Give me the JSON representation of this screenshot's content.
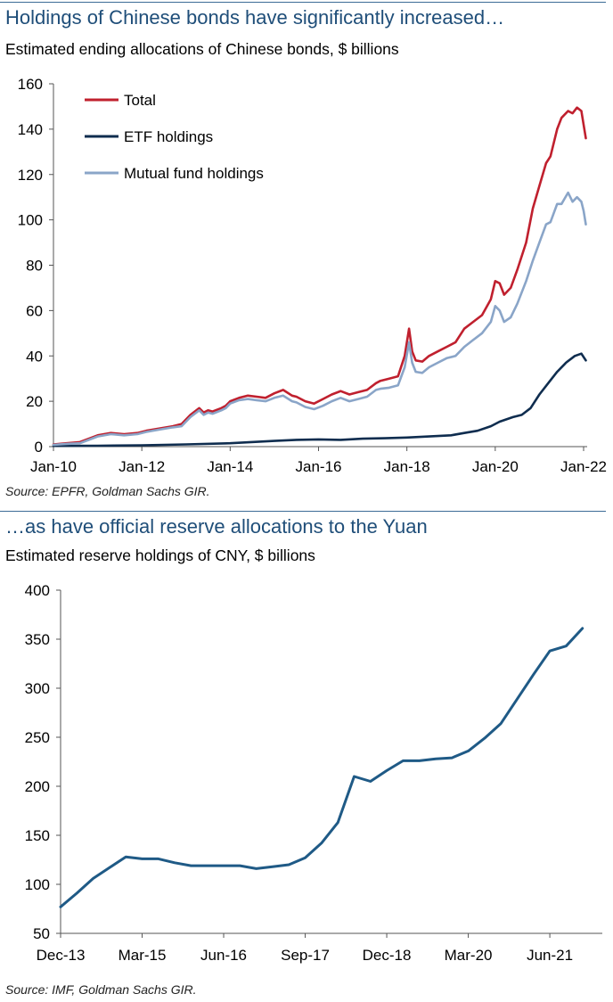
{
  "chart_data": [
    {
      "type": "line",
      "title": "Holdings of Chinese bonds have significantly increased…",
      "subtitle": "Estimated ending allocations of Chinese bonds, $ billions",
      "source": "Source: EPFR, Goldman Sachs GIR.",
      "xlim": [
        2010.0,
        2022.0
      ],
      "ylim": [
        0,
        160
      ],
      "y_ticks": [
        0,
        20,
        40,
        60,
        80,
        100,
        120,
        140,
        160
      ],
      "x_tick_labels": [
        "Jan-10",
        "Jan-12",
        "Jan-14",
        "Jan-16",
        "Jan-18",
        "Jan-20",
        "Jan-22"
      ],
      "x_tick_values": [
        2010,
        2012,
        2014,
        2016,
        2018,
        2020,
        2022
      ],
      "legend_position": "top-left",
      "grid": false,
      "series": [
        {
          "name": "Total",
          "color": "#c0202e",
          "x": [
            2010.0,
            2010.3,
            2010.6,
            2010.8,
            2011.0,
            2011.3,
            2011.6,
            2011.9,
            2012.1,
            2012.4,
            2012.7,
            2012.9,
            2013.1,
            2013.3,
            2013.4,
            2013.5,
            2013.6,
            2013.8,
            2013.9,
            2014.0,
            2014.2,
            2014.4,
            2014.6,
            2014.8,
            2015.0,
            2015.2,
            2015.4,
            2015.5,
            2015.7,
            2015.9,
            2016.1,
            2016.3,
            2016.5,
            2016.7,
            2016.9,
            2017.1,
            2017.3,
            2017.4,
            2017.6,
            2017.8,
            2017.95,
            2018.05,
            2018.12,
            2018.2,
            2018.35,
            2018.5,
            2018.7,
            2018.9,
            2019.1,
            2019.3,
            2019.5,
            2019.7,
            2019.9,
            2020.0,
            2020.1,
            2020.2,
            2020.35,
            2020.5,
            2020.7,
            2020.85,
            2021.0,
            2021.15,
            2021.25,
            2021.4,
            2021.5,
            2021.65,
            2021.75,
            2021.85,
            2021.95,
            2022.0,
            2022.05
          ],
          "values": [
            1,
            1.5,
            2,
            3.5,
            5,
            6,
            5.5,
            6,
            7,
            8,
            9,
            10,
            14,
            17,
            15,
            16,
            15.5,
            17,
            18,
            20,
            21.5,
            22.5,
            22,
            21.5,
            23.5,
            25,
            22.5,
            22,
            20,
            19,
            21,
            23,
            24.5,
            23,
            24,
            25,
            28,
            29,
            30,
            31,
            40,
            52,
            42,
            38,
            37.5,
            40,
            42,
            44,
            46,
            52,
            55,
            58,
            65,
            73,
            72,
            67,
            70,
            78,
            90,
            105,
            115,
            125,
            128,
            140,
            145,
            148,
            147,
            149.5,
            148,
            142,
            136
          ]
        },
        {
          "name": "ETF holdings",
          "color": "#0f2d4f",
          "x": [
            2010.0,
            2011.0,
            2012.0,
            2013.0,
            2014.0,
            2015.0,
            2015.5,
            2016.0,
            2016.5,
            2017.0,
            2017.5,
            2018.0,
            2018.5,
            2019.0,
            2019.3,
            2019.6,
            2019.9,
            2020.1,
            2020.4,
            2020.6,
            2020.8,
            2021.0,
            2021.2,
            2021.4,
            2021.6,
            2021.8,
            2021.95,
            2022.05
          ],
          "values": [
            0.3,
            0.4,
            0.6,
            1,
            1.5,
            2.5,
            3,
            3.2,
            3,
            3.5,
            3.7,
            4,
            4.5,
            5,
            6,
            7,
            9,
            11,
            13,
            14,
            17,
            23,
            28,
            33,
            37,
            40,
            41,
            38
          ]
        },
        {
          "name": "Mutual fund holdings",
          "color": "#8aa5c8",
          "x": [
            2010.0,
            2010.3,
            2010.6,
            2010.8,
            2011.0,
            2011.3,
            2011.6,
            2011.9,
            2012.1,
            2012.4,
            2012.7,
            2012.9,
            2013.1,
            2013.3,
            2013.4,
            2013.5,
            2013.6,
            2013.8,
            2013.9,
            2014.0,
            2014.2,
            2014.4,
            2014.6,
            2014.8,
            2015.0,
            2015.2,
            2015.4,
            2015.5,
            2015.7,
            2015.9,
            2016.1,
            2016.3,
            2016.5,
            2016.7,
            2016.9,
            2017.1,
            2017.3,
            2017.4,
            2017.6,
            2017.8,
            2017.95,
            2018.05,
            2018.12,
            2018.2,
            2018.35,
            2018.5,
            2018.7,
            2018.9,
            2019.1,
            2019.3,
            2019.5,
            2019.7,
            2019.9,
            2020.0,
            2020.1,
            2020.2,
            2020.35,
            2020.5,
            2020.7,
            2020.85,
            2021.0,
            2021.15,
            2021.25,
            2021.4,
            2021.5,
            2021.65,
            2021.75,
            2021.85,
            2021.95,
            2022.0,
            2022.05
          ],
          "values": [
            0.8,
            1.2,
            1.5,
            3,
            4.5,
            5.5,
            5,
            5.5,
            6.5,
            7.5,
            8.5,
            9,
            13,
            16,
            14,
            15,
            14.5,
            16,
            17,
            19,
            20.5,
            21,
            20.5,
            20,
            21.5,
            22.5,
            20,
            19.5,
            17.5,
            16.5,
            18,
            20,
            21.5,
            20,
            21,
            22,
            25,
            25.5,
            26,
            27,
            35,
            46,
            37,
            33,
            32.5,
            35,
            37,
            39,
            40,
            44,
            47,
            50,
            55,
            62,
            60,
            55,
            57,
            63,
            73,
            82,
            90,
            98,
            99,
            107,
            107,
            112,
            108,
            110,
            108,
            104,
            98
          ]
        }
      ]
    },
    {
      "type": "line",
      "title": "…as have official reserve allocations to the Yuan",
      "subtitle": "Estimated reserve holdings of CNY, $ billions",
      "source": "Source: IMF, Goldman Sachs GIR.",
      "ylim": [
        50,
        400
      ],
      "y_ticks": [
        50,
        100,
        150,
        200,
        250,
        300,
        350,
        400
      ],
      "x_tick_labels": [
        "Dec-13",
        "Mar-15",
        "Jun-16",
        "Sep-17",
        "Dec-18",
        "Mar-20",
        "Jun-21"
      ],
      "x_tick_values": [
        0,
        5,
        10,
        15,
        20,
        25,
        30
      ],
      "xlim": [
        0,
        33
      ],
      "grid": false,
      "series": [
        {
          "name": "",
          "color": "#1f5a86",
          "x": [
            0,
            1,
            2,
            3,
            4,
            5,
            6,
            7,
            8,
            9,
            10,
            11,
            12,
            13,
            14,
            15,
            16,
            17,
            18,
            19,
            20,
            21,
            22,
            23,
            24,
            25,
            26,
            27,
            28,
            29,
            30,
            31,
            32
          ],
          "values": [
            77,
            91,
            106,
            117,
            128,
            126,
            126,
            122,
            119,
            119,
            119,
            119,
            116,
            118,
            120,
            127,
            142,
            163,
            210,
            205,
            216,
            226,
            226,
            228,
            229,
            236,
            249,
            264,
            289,
            314,
            338,
            343,
            361
          ]
        }
      ]
    }
  ]
}
